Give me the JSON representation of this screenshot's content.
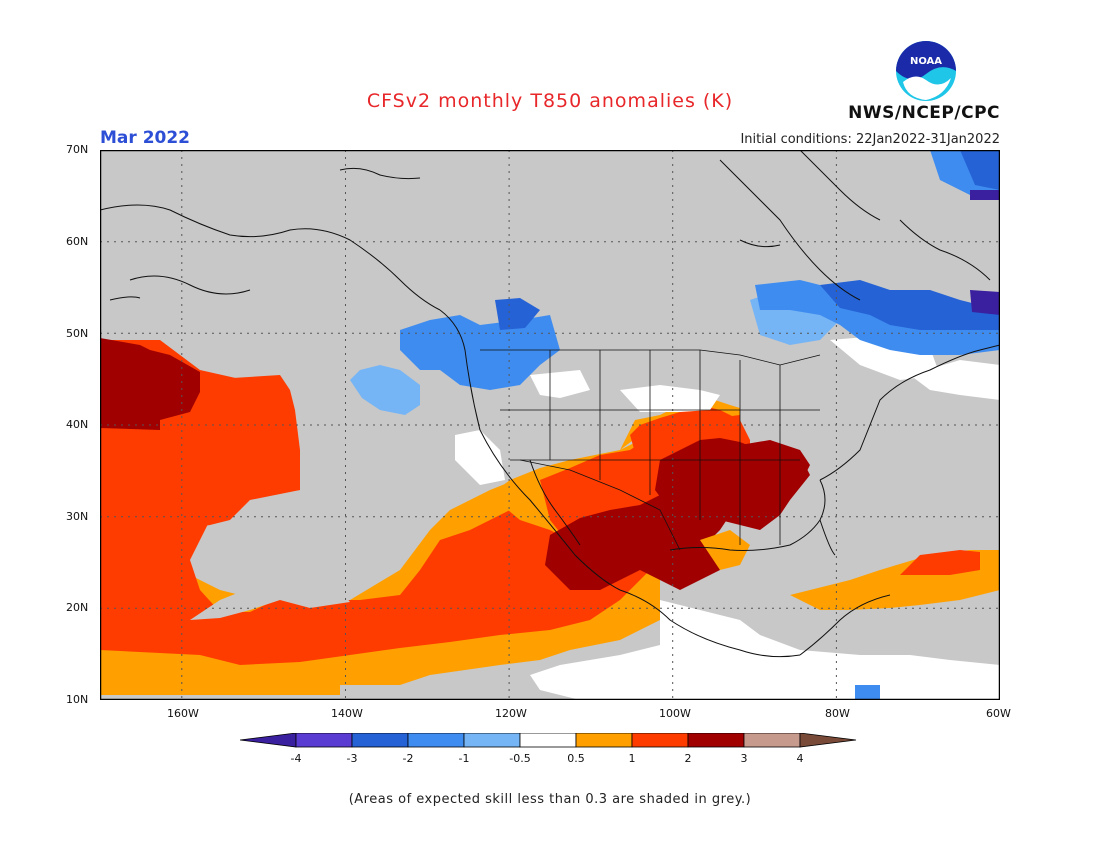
{
  "header": {
    "title": "CFSv2 monthly T850 anomalies (K)",
    "month": "Mar 2022",
    "initial_conditions": "Initial conditions: 22Jan2022-31Jan2022",
    "agency": "NWS/NCEP/CPC",
    "logo_text": "NOAA"
  },
  "map": {
    "lat_labels": [
      "70N",
      "60N",
      "50N",
      "40N",
      "30N",
      "20N",
      "10N"
    ],
    "lon_labels": [
      "160W",
      "140W",
      "120W",
      "100W",
      "80W",
      "60W"
    ],
    "lat_range": [
      10,
      70
    ],
    "lon_range": [
      -170,
      -60
    ],
    "mask_color": "#c8c8c8",
    "projection": "cylindrical equidistant"
  },
  "legend": {
    "labels": [
      "-4",
      "-3",
      "-2",
      "-1",
      "-0.5",
      "0.5",
      "1",
      "2",
      "3",
      "4"
    ],
    "colors": [
      "#3a1f9e",
      "#5a3cd2",
      "#2462d6",
      "#3f8cf0",
      "#75b4f5",
      "#ffffff",
      "#ffa000",
      "#ff3c00",
      "#a00000",
      "#c79a8e",
      "#7a4a38"
    ]
  },
  "footnote": "(Areas of expected skill less than 0.3 are shaded in grey.)"
}
